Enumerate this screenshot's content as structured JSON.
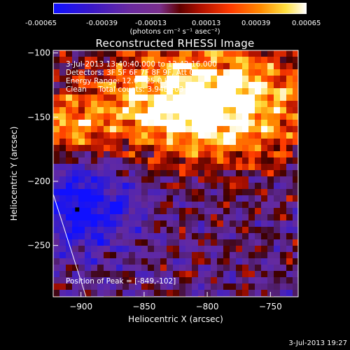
{
  "colorbar": {
    "ticks": [
      "-0.00065",
      "-0.00039",
      "-0.00013",
      "0.00013",
      "0.00039",
      "0.00065"
    ],
    "unit_label": "(photons cm⁻² s⁻¹ asec⁻²)"
  },
  "chart_data": {
    "type": "heatmap",
    "title": "Reconstructed RHESSI Image",
    "xlabel": "Heliocentric X (arcsec)",
    "ylabel": "Heliocentric Y (arcsec)",
    "xlim": [
      -922,
      -728
    ],
    "ylim": [
      -290,
      -98
    ],
    "x_ticks": [
      -900,
      -850,
      -800,
      -750
    ],
    "y_ticks": [
      -100,
      -150,
      -200,
      -250
    ],
    "color_range": [
      -0.00065,
      0.00065
    ],
    "info_lines": [
      "3-Jul-2013 13:40:40.000 to 13:42:16.000",
      "Detectors: 3F 5F 6F 7F 8F 9F, Att 0",
      "Energy Range: 12.0 - 25.0 keV",
      "Clean     Total counts: 3.94E+03"
    ],
    "peak_label": "Position of Peak = [-849,-102]",
    "peak": {
      "x": -849,
      "y": -102
    },
    "min_marker": {
      "x": -903,
      "y": -222
    },
    "limb_line": {
      "x1": -922,
      "y1": -210,
      "x2": -896,
      "y2": -290
    }
  },
  "timestamp": "3-Jul-2013 19:27"
}
